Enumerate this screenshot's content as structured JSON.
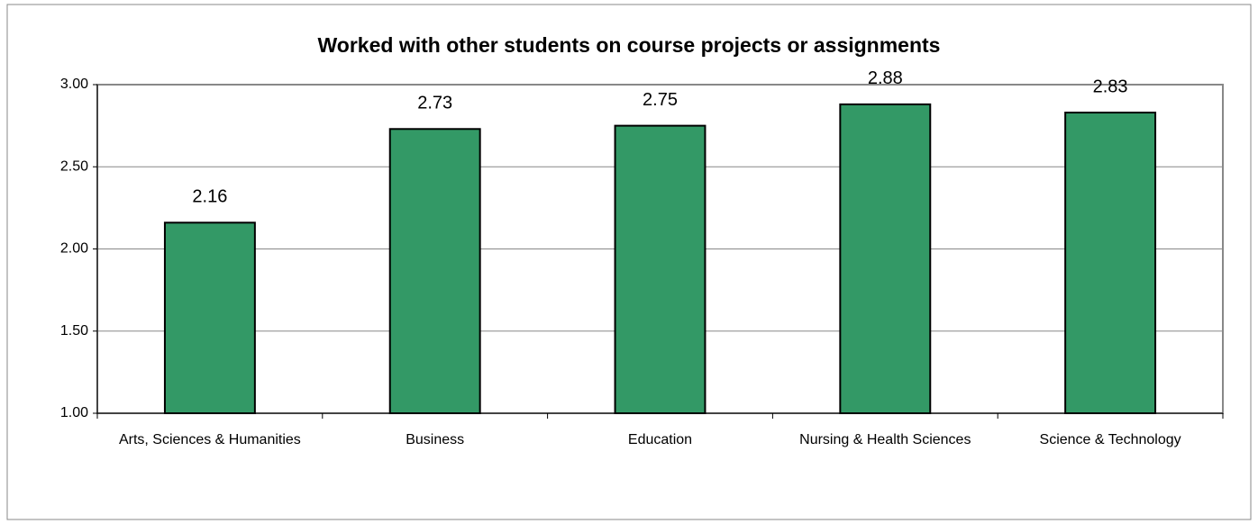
{
  "chart_data": {
    "type": "bar",
    "title": "Worked with other students on course projects or assignments",
    "categories": [
      "Arts, Sciences & Humanities",
      "Business",
      "Education",
      "Nursing & Health Sciences",
      "Science & Technology"
    ],
    "values": [
      2.16,
      2.73,
      2.75,
      2.88,
      2.83
    ],
    "color": "#339966",
    "ylim": [
      1,
      3
    ],
    "yticks": [
      {
        "value": 1,
        "label": "1.00"
      },
      {
        "value": 1.5,
        "label": "1.50"
      },
      {
        "value": 2,
        "label": "2.00"
      },
      {
        "value": 2.5,
        "label": "2.50"
      },
      {
        "value": 3,
        "label": "3.00"
      }
    ],
    "grid": true
  }
}
